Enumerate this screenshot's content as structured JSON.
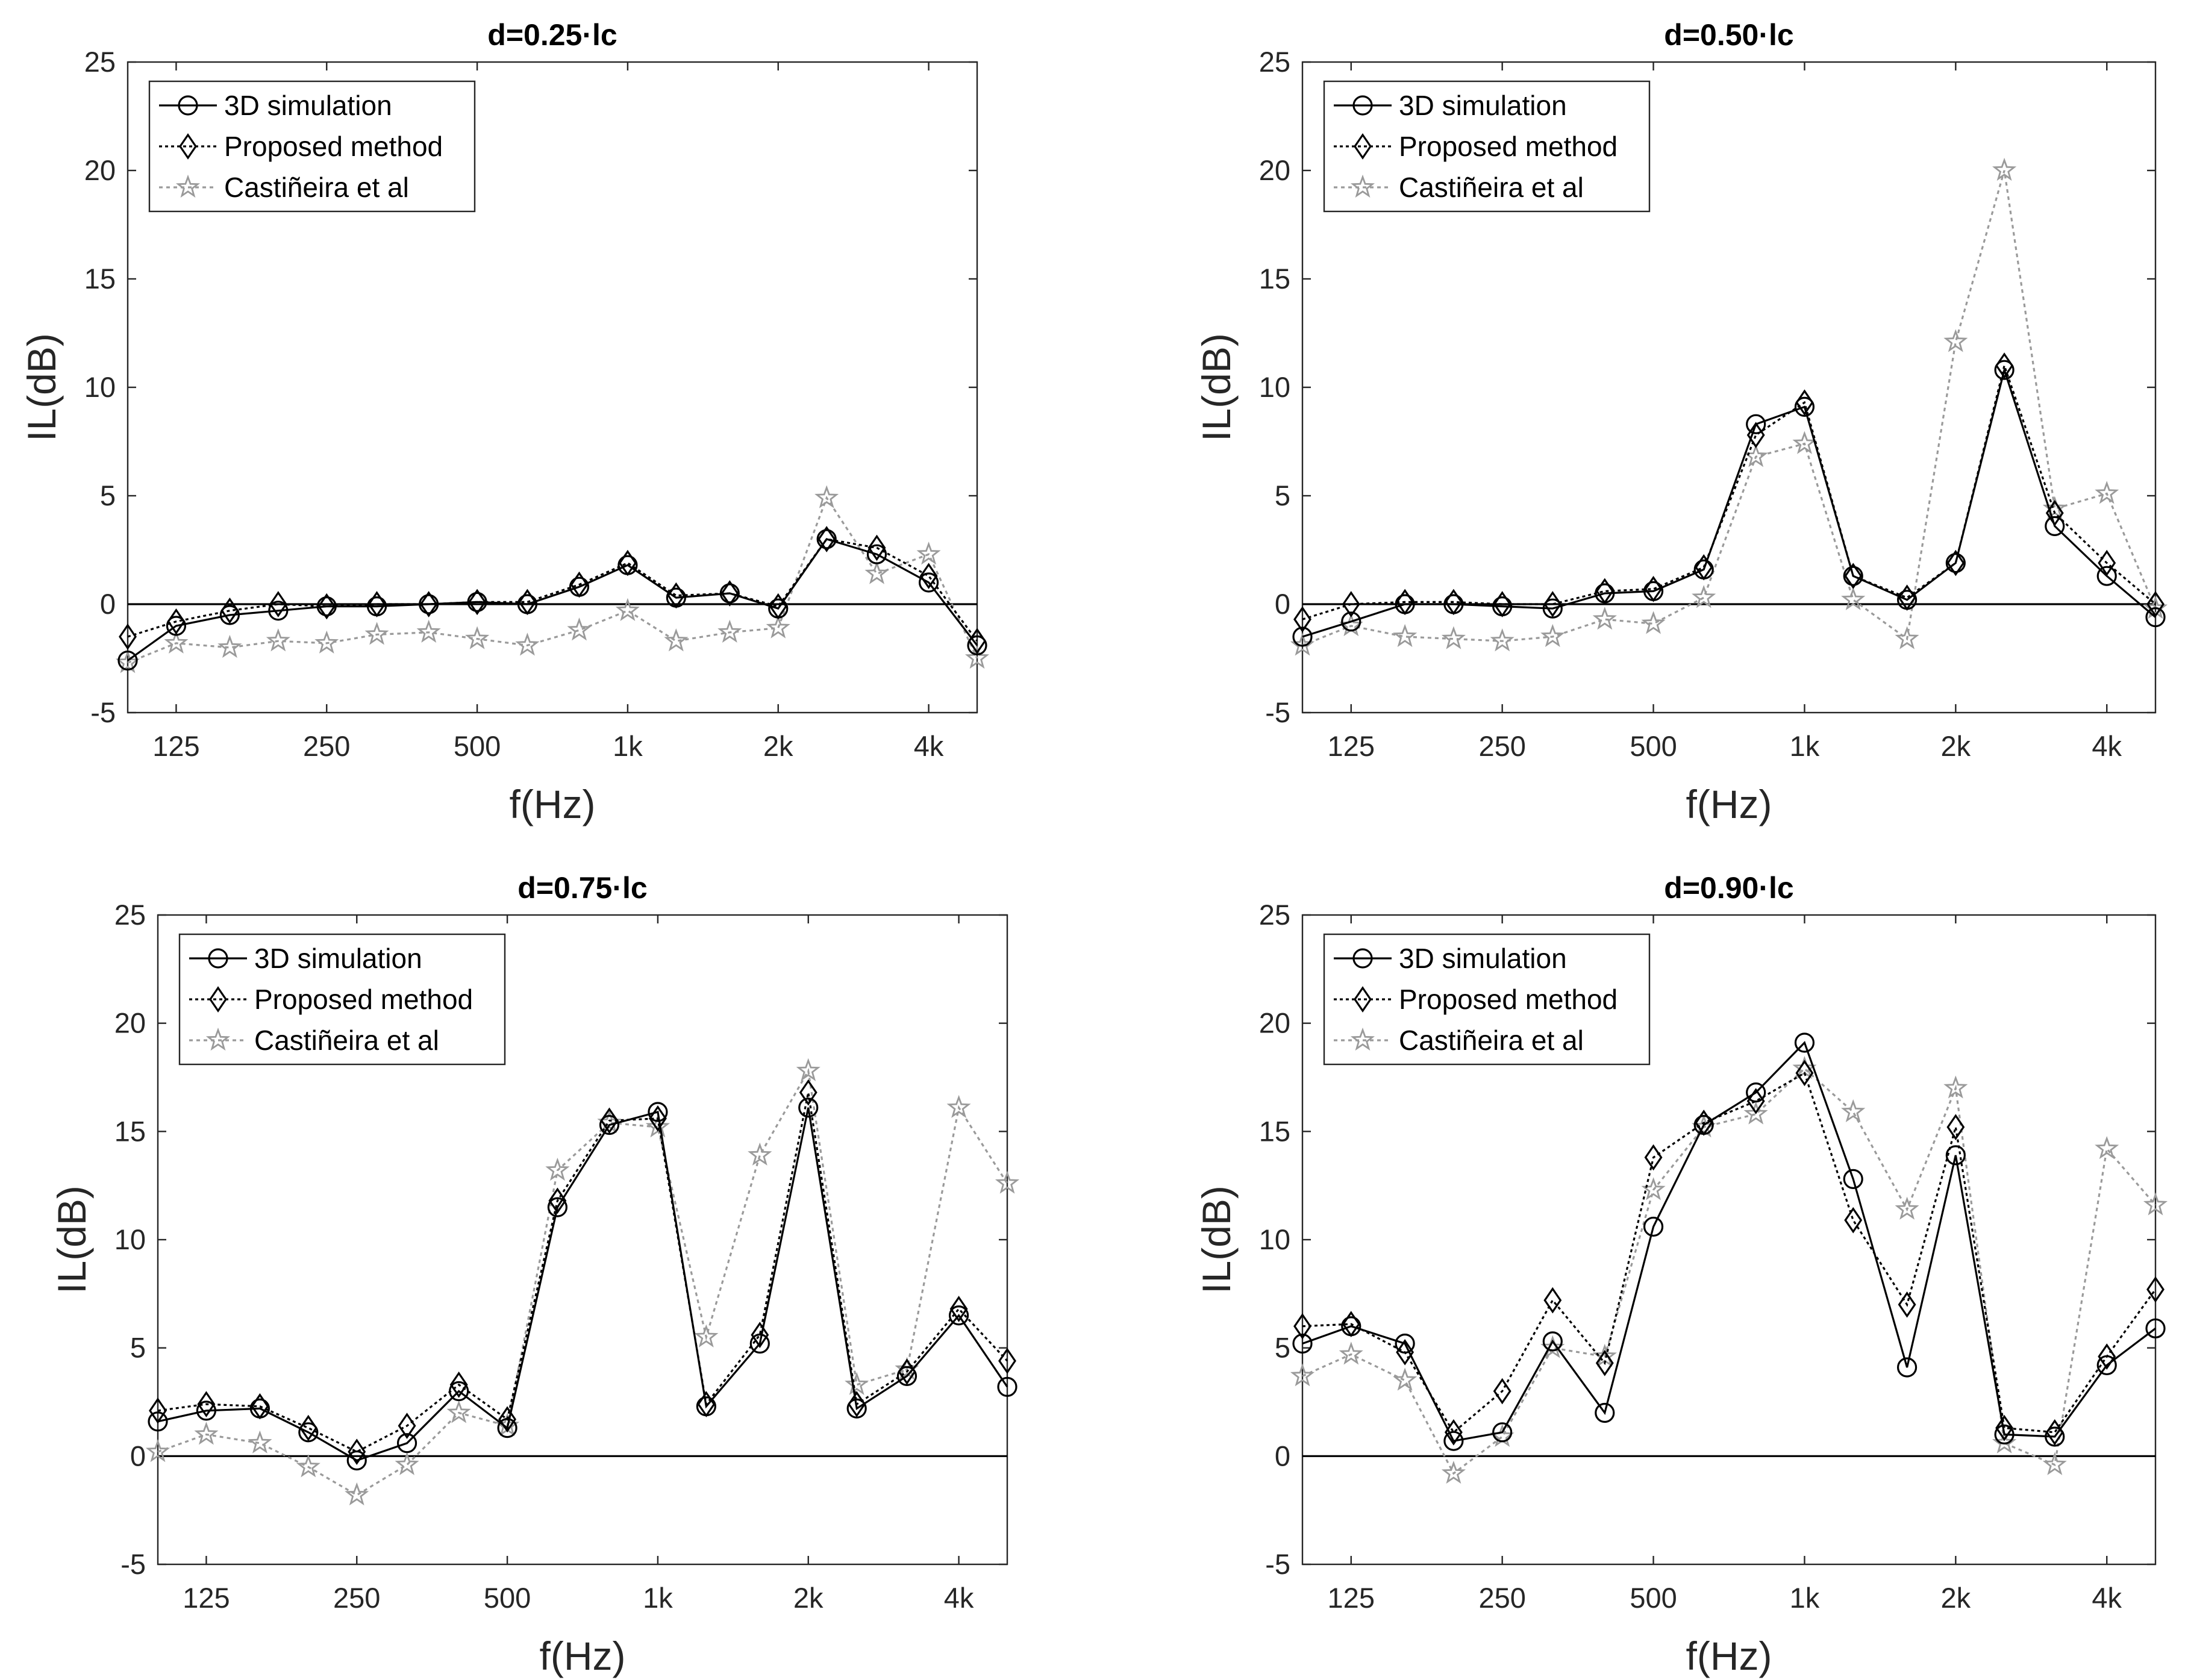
{
  "chart_data": [
    {
      "type": "line",
      "title": "d=0.25·lc",
      "xlabel": "f(Hz)",
      "ylabel": "IL(dB)",
      "ylim": [
        -5,
        25
      ],
      "yticks": [
        "-5",
        "0",
        "5",
        "10",
        "15",
        "20",
        "25"
      ],
      "xtick_labels": [
        "125",
        "250",
        "500",
        "1k",
        "2k",
        "4k"
      ],
      "legend": [
        "3D simulation",
        "Proposed method",
        "Castiñeira et al"
      ],
      "legend_position": "top-left",
      "x": [
        100,
        125,
        160,
        200,
        250,
        315,
        400,
        500,
        630,
        800,
        1000,
        1250,
        1600,
        2000,
        2500,
        3150,
        4000,
        5000
      ],
      "series": [
        {
          "name": "3D simulation",
          "values": [
            -2.6,
            -1.0,
            -0.5,
            -0.3,
            -0.1,
            -0.1,
            0.0,
            0.1,
            0.0,
            0.8,
            1.8,
            0.3,
            0.5,
            -0.2,
            3.0,
            2.3,
            1.0,
            -1.9
          ]
        },
        {
          "name": "Proposed method",
          "values": [
            -1.5,
            -0.8,
            -0.3,
            0.0,
            -0.1,
            0.0,
            0.0,
            0.1,
            0.1,
            0.9,
            1.9,
            0.4,
            0.5,
            -0.1,
            3.0,
            2.6,
            1.3,
            -1.7
          ]
        },
        {
          "name": "Castiñeira et al",
          "values": [
            -2.7,
            -1.8,
            -2.0,
            -1.7,
            -1.8,
            -1.4,
            -1.3,
            -1.6,
            -1.9,
            -1.2,
            -0.3,
            -1.7,
            -1.3,
            -1.1,
            4.9,
            1.4,
            2.3,
            -2.5
          ]
        }
      ]
    },
    {
      "type": "line",
      "title": "d=0.50·lc",
      "xlabel": "f(Hz)",
      "ylabel": "IL(dB)",
      "ylim": [
        -5,
        25
      ],
      "yticks": [
        "-5",
        "0",
        "5",
        "10",
        "15",
        "20",
        "25"
      ],
      "xtick_labels": [
        "125",
        "250",
        "500",
        "1k",
        "2k",
        "4k"
      ],
      "legend": [
        "3D simulation",
        "Proposed method",
        "Castiñeira et al"
      ],
      "legend_position": "top-left",
      "x": [
        100,
        125,
        160,
        200,
        250,
        315,
        400,
        500,
        630,
        800,
        1000,
        1250,
        1600,
        2000,
        2500,
        3150,
        4000,
        5000
      ],
      "series": [
        {
          "name": "3D simulation",
          "values": [
            -1.5,
            -0.8,
            0.0,
            0.0,
            -0.1,
            -0.2,
            0.5,
            0.6,
            1.6,
            8.3,
            9.1,
            1.3,
            0.2,
            1.9,
            10.8,
            3.6,
            1.3,
            -0.6
          ]
        },
        {
          "name": "Proposed method",
          "values": [
            -0.7,
            0.0,
            0.1,
            0.1,
            0.0,
            0.0,
            0.6,
            0.7,
            1.7,
            7.8,
            9.3,
            1.3,
            0.3,
            1.9,
            11.0,
            4.2,
            1.9,
            0.0
          ]
        },
        {
          "name": "Castiñeira et al",
          "values": [
            -1.9,
            -1.0,
            -1.5,
            -1.6,
            -1.7,
            -1.5,
            -0.7,
            -0.9,
            0.3,
            6.8,
            7.4,
            0.2,
            -1.6,
            12.1,
            20.0,
            4.4,
            5.1,
            -0.2
          ]
        }
      ]
    },
    {
      "type": "line",
      "title": "d=0.75·lc",
      "xlabel": "f(Hz)",
      "ylabel": "IL(dB)",
      "ylim": [
        -5,
        25
      ],
      "yticks": [
        "-5",
        "0",
        "5",
        "10",
        "15",
        "20",
        "25"
      ],
      "xtick_labels": [
        "125",
        "250",
        "500",
        "1k",
        "2k",
        "4k"
      ],
      "legend": [
        "3D simulation",
        "Proposed method",
        "Castiñeira et al"
      ],
      "legend_position": "top-left",
      "x": [
        100,
        125,
        160,
        200,
        250,
        315,
        400,
        500,
        630,
        800,
        1000,
        1250,
        1600,
        2000,
        2500,
        3150,
        4000,
        5000
      ],
      "series": [
        {
          "name": "3D simulation",
          "values": [
            1.6,
            2.1,
            2.2,
            1.1,
            -0.2,
            0.6,
            3.0,
            1.3,
            11.5,
            15.3,
            15.9,
            2.3,
            5.2,
            16.1,
            2.2,
            3.7,
            6.5,
            3.2
          ]
        },
        {
          "name": "Proposed method",
          "values": [
            2.1,
            2.4,
            2.3,
            1.3,
            0.2,
            1.4,
            3.3,
            1.7,
            11.8,
            15.5,
            15.6,
            2.4,
            5.6,
            16.8,
            2.4,
            3.9,
            6.8,
            4.4
          ]
        },
        {
          "name": "Castiñeira et al",
          "values": [
            0.2,
            1.0,
            0.6,
            -0.5,
            -1.8,
            -0.4,
            2.0,
            1.4,
            13.2,
            15.4,
            15.2,
            5.5,
            13.9,
            17.8,
            3.3,
            4.0,
            16.1,
            12.6
          ]
        }
      ]
    },
    {
      "type": "line",
      "title": "d=0.90·lc",
      "xlabel": "f(Hz)",
      "ylabel": "IL(dB)",
      "ylim": [
        -5,
        25
      ],
      "yticks": [
        "-5",
        "0",
        "5",
        "10",
        "15",
        "20",
        "25"
      ],
      "xtick_labels": [
        "125",
        "250",
        "500",
        "1k",
        "2k",
        "4k"
      ],
      "legend": [
        "3D simulation",
        "Proposed method",
        "Castiñeira et al"
      ],
      "legend_position": "top-left",
      "x": [
        100,
        125,
        160,
        200,
        250,
        315,
        400,
        500,
        630,
        800,
        1000,
        1250,
        1600,
        2000,
        2500,
        3150,
        4000,
        5000
      ],
      "series": [
        {
          "name": "3D simulation",
          "values": [
            5.2,
            6.0,
            5.2,
            0.7,
            1.1,
            5.3,
            2.0,
            10.6,
            15.3,
            16.8,
            19.1,
            12.8,
            4.1,
            13.9,
            1.0,
            0.9,
            4.2,
            5.9
          ]
        },
        {
          "name": "Proposed method",
          "values": [
            6.0,
            6.1,
            4.8,
            1.1,
            3.0,
            7.2,
            4.3,
            13.8,
            15.4,
            16.4,
            17.7,
            10.9,
            7.0,
            15.2,
            1.3,
            1.1,
            4.6,
            7.7
          ]
        },
        {
          "name": "Castiñeira et al",
          "values": [
            3.7,
            4.7,
            3.5,
            -0.8,
            0.9,
            5.0,
            4.6,
            12.3,
            15.2,
            15.8,
            17.9,
            15.9,
            11.4,
            17.0,
            0.6,
            -0.4,
            14.2,
            11.6
          ]
        }
      ]
    }
  ]
}
